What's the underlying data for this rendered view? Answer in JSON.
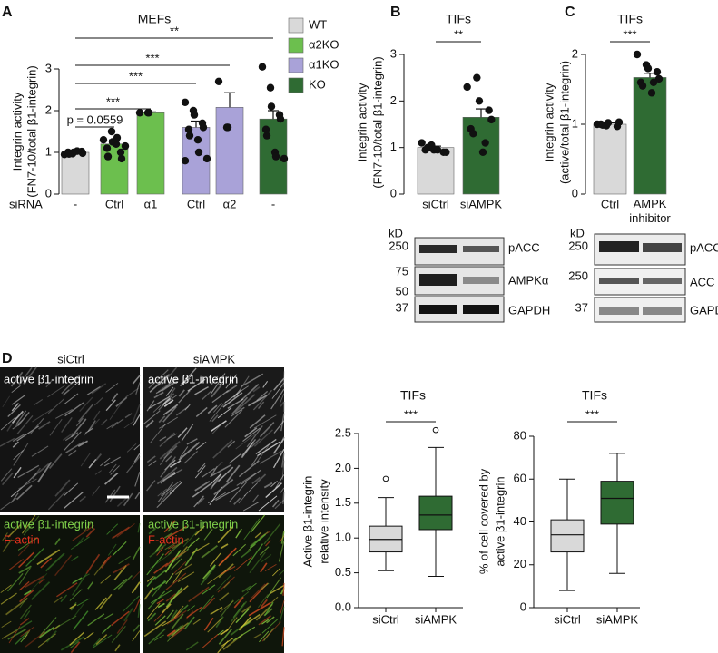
{
  "chart_data": [
    {
      "type": "bar",
      "panel_label": "A",
      "title": "MEFs",
      "ylabel": [
        "Integrin activity",
        "(FN7-10/total β1-integrin)"
      ],
      "category_label": "siRNA",
      "categories": [
        "-",
        "Ctrl",
        "α1",
        "Ctrl",
        "α2",
        "-"
      ],
      "ylim": [
        0,
        3
      ],
      "yticks": [
        0,
        1,
        2,
        3
      ],
      "series": [
        {
          "name": "WT",
          "color": "#d9d9d9",
          "values": [
            1.0,
            null,
            null,
            null,
            null,
            null
          ],
          "errors": [
            0.03,
            null,
            null,
            null,
            null,
            null
          ],
          "points": [
            [
              0.95,
              0.97,
              1.0,
              1.02,
              0.98,
              1.0,
              0.96,
              1.03
            ],
            null,
            null,
            null,
            null,
            null
          ]
        },
        {
          "name": "α2KO",
          "color": "#6cbf4e",
          "values": [
            null,
            1.2,
            1.95,
            null,
            null,
            null
          ],
          "errors": [
            null,
            0.1,
            0.02,
            null,
            null,
            null
          ],
          "points": [
            null,
            [
              1.3,
              1.5,
              1.25,
              1.0,
              0.85,
              1.1,
              0.9,
              1.2,
              1.35,
              1.15
            ],
            [
              1.95,
              1.95,
              1.95
            ],
            null,
            null,
            null
          ]
        },
        {
          "name": "α1KO",
          "color": "#a9a2d8",
          "values": [
            null,
            null,
            null,
            1.6,
            2.08,
            null
          ],
          "errors": [
            null,
            null,
            null,
            0.15,
            0.35,
            null
          ],
          "points": [
            null,
            null,
            null,
            [
              2.2,
              2.0,
              1.9,
              1.7,
              1.6,
              1.55,
              1.4,
              1.3,
              1.0,
              0.85,
              0.8
            ],
            [
              2.7,
              1.6,
              1.6
            ],
            null
          ]
        },
        {
          "name": "KO",
          "color": "#2f6b33",
          "values": [
            null,
            null,
            null,
            null,
            null,
            1.8
          ],
          "errors": [
            null,
            null,
            null,
            null,
            null,
            0.2
          ],
          "points": [
            null,
            null,
            null,
            null,
            null,
            [
              3.05,
              2.55,
              2.1,
              1.9,
              1.8,
              1.55,
              1.4,
              1.0,
              0.9,
              0.85
            ]
          ]
        }
      ],
      "significance": [
        "p = 0.0559",
        "***",
        "***",
        "***",
        "**"
      ]
    },
    {
      "type": "bar",
      "panel_label": "B",
      "title": "TIFs",
      "ylabel": [
        "Integrin activity",
        "(FN7-10/total β1-integrin)"
      ],
      "categories": [
        "siCtrl",
        "siAMPK"
      ],
      "ylim": [
        0,
        3
      ],
      "yticks": [
        0,
        1,
        2,
        3
      ],
      "values": [
        1.0,
        1.65
      ],
      "errors": [
        0.03,
        0.18
      ],
      "colors": [
        "#d9d9d9",
        "#2f6b33"
      ],
      "points": [
        [
          1.1,
          1.05,
          0.95,
          0.9,
          0.9,
          0.95,
          1.0,
          0.95
        ],
        [
          2.3,
          2.5,
          2.0,
          1.8,
          1.6,
          1.4,
          1.3,
          0.9,
          1.1
        ]
      ],
      "significance": [
        "**"
      ]
    },
    {
      "type": "bar",
      "panel_label": "C",
      "title": "TIFs",
      "ylabel": [
        "Integrin activity",
        "(active/total β1-integrin)"
      ],
      "categories": [
        "Ctrl",
        "AMPK inhibitor"
      ],
      "ylim": [
        0,
        2
      ],
      "yticks": [
        0,
        1,
        2
      ],
      "values": [
        1.0,
        1.67
      ],
      "errors": [
        0.02,
        0.06
      ],
      "colors": [
        "#d9d9d9",
        "#2f6b33"
      ],
      "points": [
        [
          1.0,
          0.98,
          1.02,
          0.97,
          1.03,
          1.0,
          0.99
        ],
        [
          2.0,
          1.85,
          1.8,
          1.75,
          1.65,
          1.6,
          1.55,
          1.45,
          1.6
        ]
      ],
      "significance": [
        "***"
      ]
    },
    {
      "type": "box",
      "title": "TIFs",
      "ylabel": [
        "Active β1-integrin",
        "relative intensity"
      ],
      "categories": [
        "siCtrl",
        "siAMPK"
      ],
      "ylim": [
        0,
        2.5
      ],
      "yticks": [
        {
          "value": 0,
          "label": "0.0"
        },
        0.5,
        {
          "value": 1,
          "label": "1.0"
        },
        1.5,
        {
          "value": 2,
          "label": "2.0"
        },
        2.5
      ],
      "colors": [
        "#d9d9d9",
        "#2f6b33"
      ],
      "boxes": [
        {
          "min": 0.53,
          "q1": 0.8,
          "median": 0.98,
          "q3": 1.17,
          "max": 1.58,
          "outliers": [
            1.85
          ]
        },
        {
          "min": 0.45,
          "q1": 1.12,
          "median": 1.33,
          "q3": 1.6,
          "max": 2.3,
          "outliers": [
            2.55
          ]
        }
      ],
      "significance": [
        "***"
      ]
    },
    {
      "type": "box",
      "title": "TIFs",
      "ylabel": [
        "% of cell covered by",
        "active β1-integrin"
      ],
      "categories": [
        "siCtrl",
        "siAMPK"
      ],
      "ylim": [
        0,
        80
      ],
      "yticks": [
        0,
        20,
        40,
        60,
        80
      ],
      "colors": [
        "#d9d9d9",
        "#2f6b33"
      ],
      "boxes": [
        {
          "min": 8,
          "q1": 26,
          "median": 34,
          "q3": 41,
          "max": 60,
          "outliers": []
        },
        {
          "min": 16,
          "q1": 39,
          "median": 51,
          "q3": 59,
          "max": 72,
          "outliers": []
        }
      ],
      "significance": [
        "***"
      ]
    }
  ],
  "blots": [
    {
      "unit": "kD",
      "markers": [
        250,
        75,
        50,
        37
      ],
      "proteins": [
        "pACC",
        "AMPKα",
        "GAPDH"
      ]
    },
    {
      "unit": "kD",
      "markers": [
        250,
        250,
        37
      ],
      "proteins": [
        "pACC",
        "ACC",
        "GAPDH"
      ]
    }
  ],
  "micrographs": {
    "panel_label": "D",
    "conditions": [
      "siCtrl",
      "siAMPK"
    ],
    "channels": [
      "active β1-integrin",
      "F-actin"
    ]
  }
}
